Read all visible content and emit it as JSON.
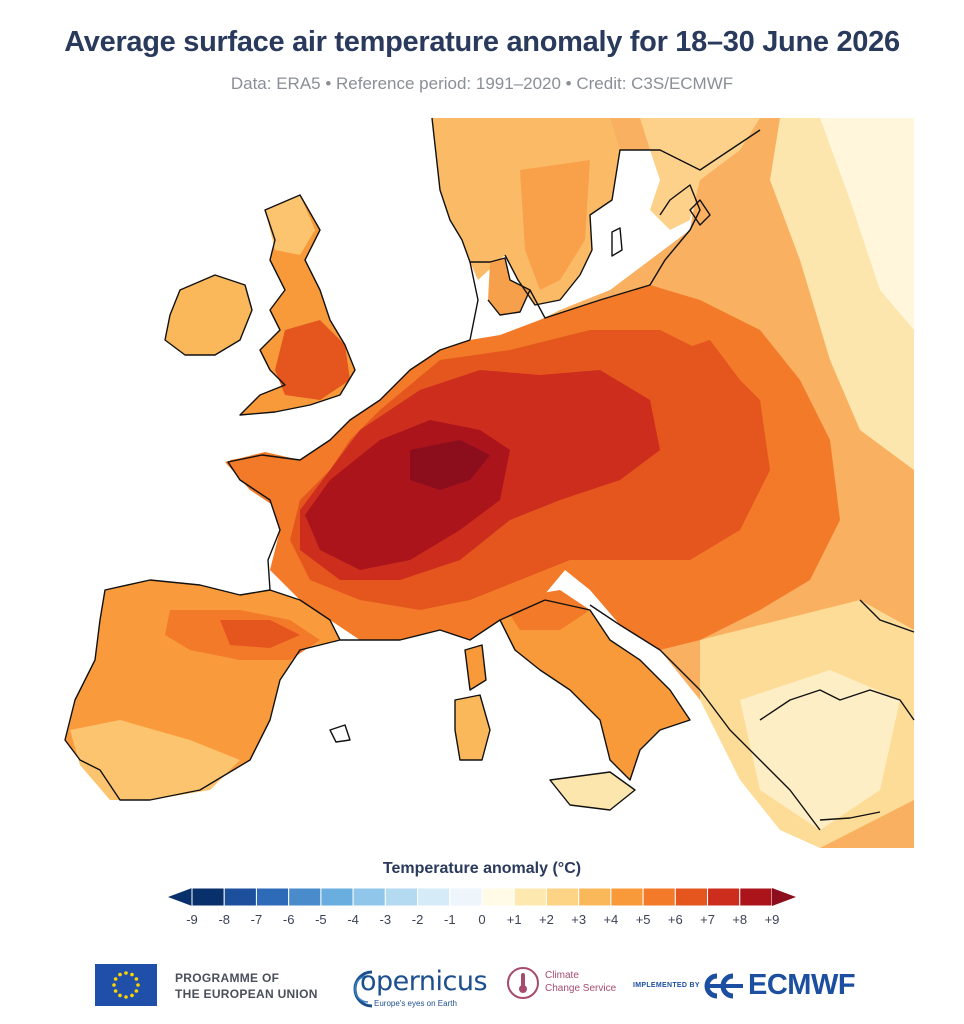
{
  "title": "Average surface air temperature anomaly for 18–30 June 2026",
  "subtitle": "Data: ERA5 • Reference period: 1991–2020 • Credit: C3S/ECMWF",
  "legend": {
    "title": "Temperature anomaly (°C)",
    "ticks": [
      "-9",
      "-8",
      "-7",
      "-6",
      "-5",
      "-4",
      "-3",
      "-2",
      "-1",
      "0",
      "+1",
      "+2",
      "+3",
      "+4",
      "+5",
      "+6",
      "+7",
      "+8",
      "+9"
    ],
    "colors": [
      "#08306b",
      "#1c4f9c",
      "#2d6ab8",
      "#4a8ccb",
      "#6aaedf",
      "#8fc6ea",
      "#b4daf2",
      "#d6ebf8",
      "#eef6fc",
      "#fffbe6",
      "#fde9b0",
      "#fdd486",
      "#fbb85b",
      "#f89a3a",
      "#f27a29",
      "#e4561e",
      "#cd2d1c",
      "#ab141b"
    ],
    "extreme_low_color": "#08306b",
    "extreme_high_color": "#8c0d1c"
  },
  "map": {
    "region": "Europe",
    "background_color": "#ffffff",
    "coastline_color": "#111111"
  },
  "footer": {
    "eu_line1": "PROGRAMME OF",
    "eu_line2": "THE EUROPEAN UNION",
    "copernicus_name": "opernicus",
    "copernicus_tagline": "Europe's eyes on Earth",
    "c3s_line1": "Climate",
    "c3s_line2": "Change Service",
    "implemented_by": "IMPLEMENTED BY",
    "ecmwf": "ECMWF"
  }
}
